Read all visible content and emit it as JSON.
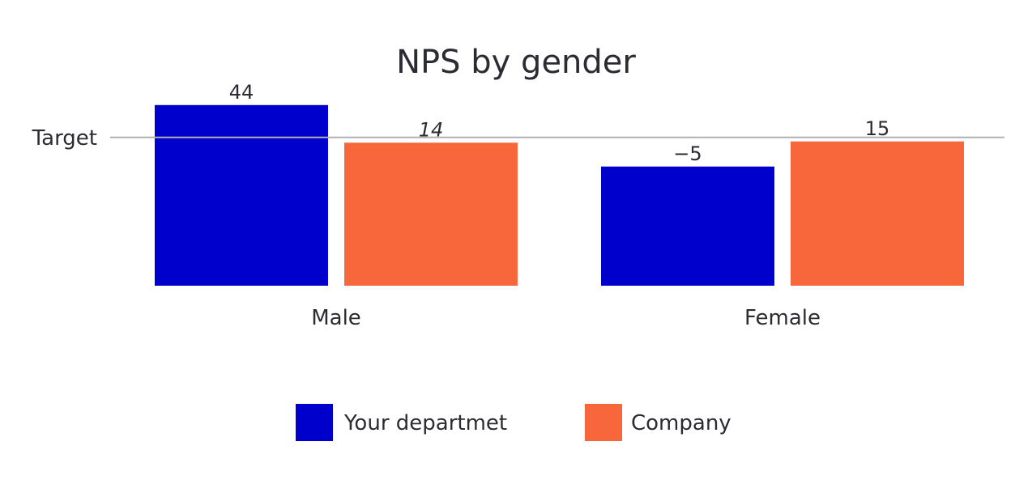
{
  "chart_data": {
    "type": "bar",
    "title": "NPS by gender",
    "categories": [
      "Male",
      "Female"
    ],
    "series": [
      {
        "name": "Your departmet",
        "color": "#0000cc",
        "values": [
          44,
          -5
        ]
      },
      {
        "name": "Company",
        "color": "#f8663c",
        "values": [
          14,
          15
        ]
      }
    ],
    "value_labels": [
      [
        "44",
        "−5"
      ],
      [
        "14",
        "15"
      ]
    ],
    "reference_line": {
      "label": "Target",
      "value": 15,
      "color": "#b0b0b0"
    },
    "ylim": [
      -100,
      100
    ],
    "grid": false,
    "legend_position": "bottom-center"
  }
}
